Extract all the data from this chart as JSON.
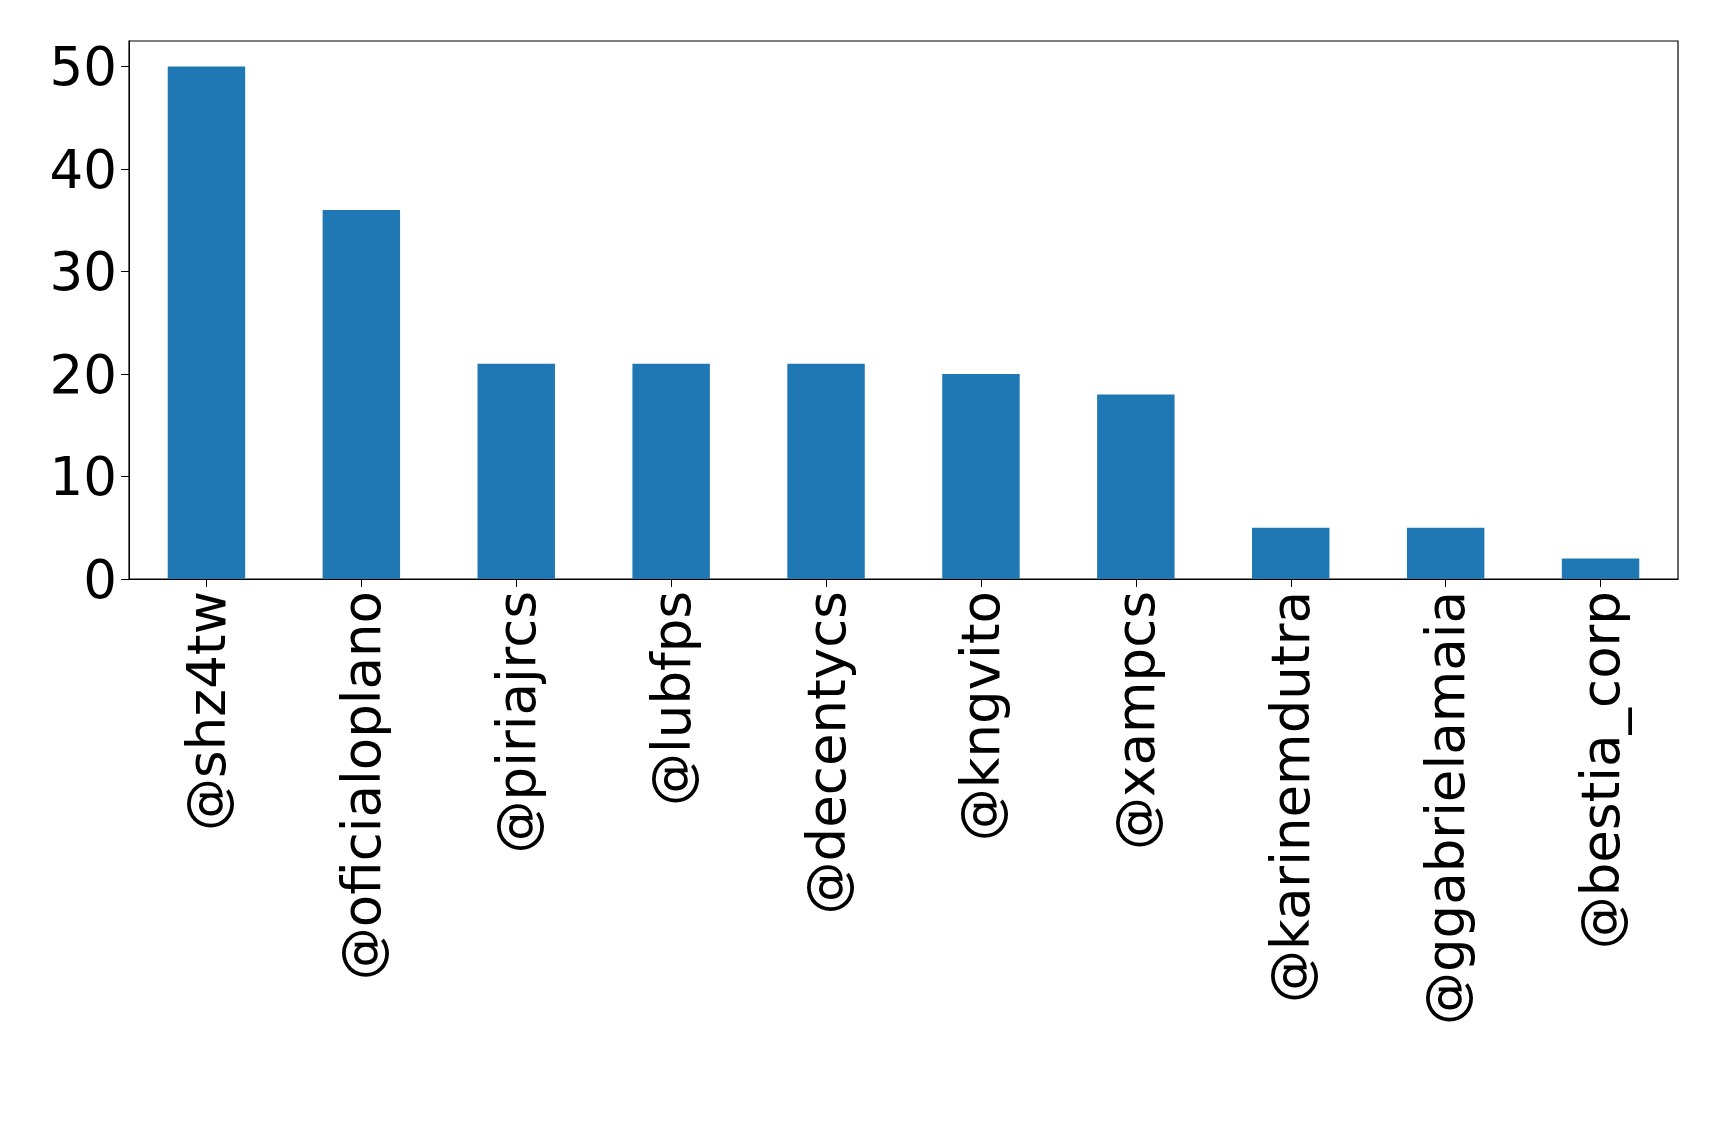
{
  "chart_data": {
    "type": "bar",
    "categories": [
      "@shz4tw",
      "@oficialoplano",
      "@piriajrcs",
      "@lubfps",
      "@decentycs",
      "@kngvito",
      "@xampcs",
      "@karinemdutra",
      "@ggabrielamaia",
      "@bestia_corp"
    ],
    "values": [
      50,
      36,
      21,
      21,
      21,
      20,
      18,
      5,
      5,
      2
    ],
    "color": "#1f77b4",
    "ylim": [
      0,
      52.5
    ],
    "yticks": [
      0,
      10,
      20,
      30,
      40,
      50
    ],
    "grid": false
  }
}
